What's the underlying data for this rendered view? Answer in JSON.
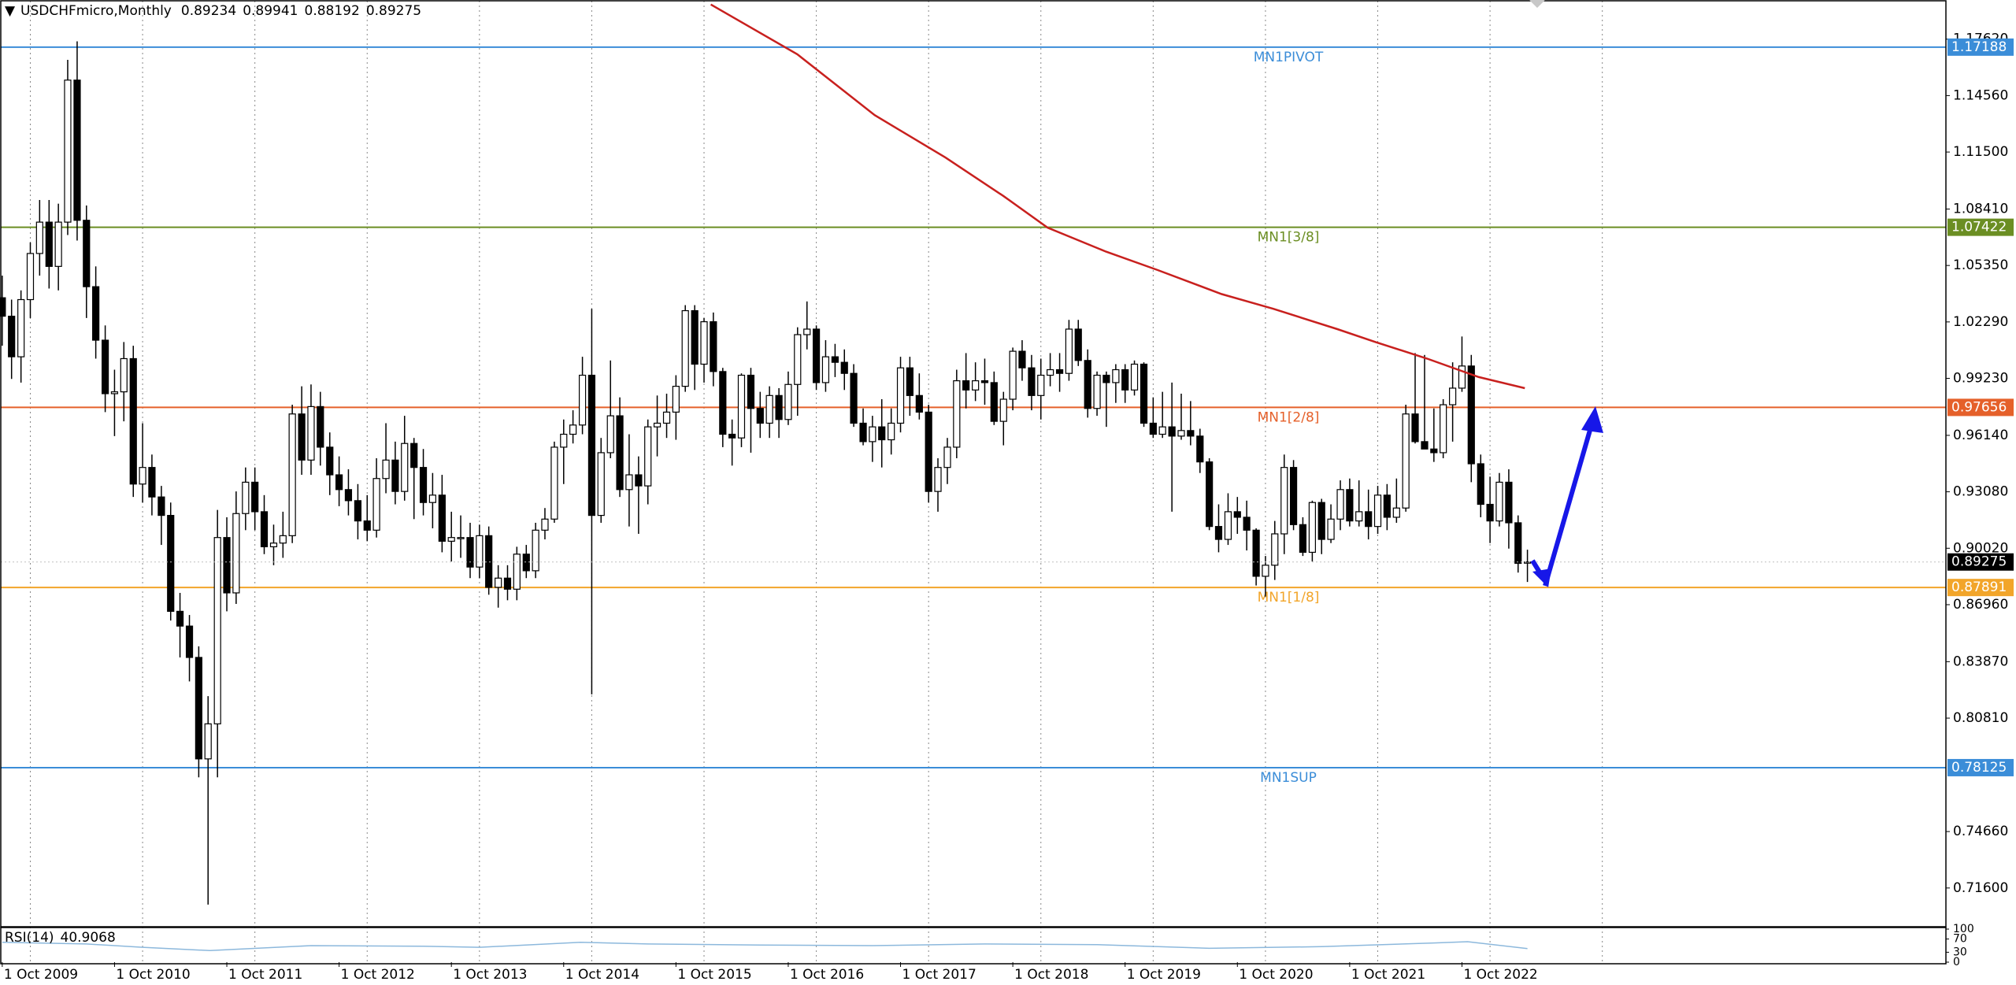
{
  "chart_data": {
    "type": "candlestick",
    "title": "USDCHFmicro,Monthly",
    "xlim": [
      2009.73,
      2027.06
    ],
    "ylim": [
      0.695,
      1.197
    ],
    "grid": true,
    "xgrid": [
      2010,
      2011,
      2012,
      2013,
      2014,
      2015,
      2016,
      2017,
      2018,
      2019,
      2020,
      2021,
      2022,
      2023,
      2024
    ],
    "xticks": [
      {
        "value": 2009.75,
        "label": "1 Oct 2009"
      },
      {
        "value": 2010.75,
        "label": "1 Oct 2010"
      },
      {
        "value": 2011.75,
        "label": "1 Oct 2011"
      },
      {
        "value": 2012.75,
        "label": "1 Oct 2012"
      },
      {
        "value": 2013.75,
        "label": "1 Oct 2013"
      },
      {
        "value": 2014.75,
        "label": "1 Oct 2014"
      },
      {
        "value": 2015.75,
        "label": "1 Oct 2015"
      },
      {
        "value": 2016.75,
        "label": "1 Oct 2016"
      },
      {
        "value": 2017.75,
        "label": "1 Oct 2017"
      },
      {
        "value": 2018.75,
        "label": "1 Oct 2018"
      },
      {
        "value": 2019.75,
        "label": "1 Oct 2019"
      },
      {
        "value": 2020.75,
        "label": "1 Oct 2020"
      },
      {
        "value": 2021.75,
        "label": "1 Oct 2021"
      },
      {
        "value": 2022.75,
        "label": "1 Oct 2022"
      }
    ],
    "yticks": [
      {
        "value": 1.1762,
        "label": "1.17620"
      },
      {
        "value": 1.1456,
        "label": "1.14560"
      },
      {
        "value": 1.115,
        "label": "1.11500"
      },
      {
        "value": 1.0841,
        "label": "1.08410"
      },
      {
        "value": 1.0535,
        "label": "1.05350"
      },
      {
        "value": 1.0229,
        "label": "1.02290"
      },
      {
        "value": 0.9923,
        "label": "0.99230"
      },
      {
        "value": 0.9614,
        "label": "0.96140"
      },
      {
        "value": 0.9308,
        "label": "0.93080"
      },
      {
        "value": 0.9002,
        "label": "0.90020"
      },
      {
        "value": 0.8696,
        "label": "0.86960"
      },
      {
        "value": 0.8387,
        "label": "0.83870"
      },
      {
        "value": 0.8081,
        "label": "0.80810"
      },
      {
        "value": 0.7466,
        "label": "0.74660"
      },
      {
        "value": 0.716,
        "label": "0.71600"
      }
    ],
    "series": [
      {
        "up_color": "#ffffff",
        "down_color": "#000000",
        "wick_color": "#000000",
        "x": [
          2009.75,
          2009.833,
          2009.917,
          2010,
          2010.083,
          2010.167,
          2010.25,
          2010.333,
          2010.417,
          2010.5,
          2010.583,
          2010.667,
          2010.75,
          2010.833,
          2010.917,
          2011,
          2011.083,
          2011.167,
          2011.25,
          2011.333,
          2011.417,
          2011.5,
          2011.583,
          2011.667,
          2011.75,
          2011.833,
          2011.917,
          2012,
          2012.083,
          2012.167,
          2012.25,
          2012.333,
          2012.417,
          2012.5,
          2012.583,
          2012.667,
          2012.75,
          2012.833,
          2012.917,
          2013,
          2013.083,
          2013.167,
          2013.25,
          2013.333,
          2013.417,
          2013.5,
          2013.583,
          2013.667,
          2013.75,
          2013.833,
          2013.917,
          2014,
          2014.083,
          2014.167,
          2014.25,
          2014.333,
          2014.417,
          2014.5,
          2014.583,
          2014.667,
          2014.75,
          2014.833,
          2014.917,
          2015,
          2015.083,
          2015.167,
          2015.25,
          2015.333,
          2015.417,
          2015.5,
          2015.583,
          2015.667,
          2015.75,
          2015.833,
          2015.917,
          2016,
          2016.083,
          2016.167,
          2016.25,
          2016.333,
          2016.417,
          2016.5,
          2016.583,
          2016.667,
          2016.75,
          2016.833,
          2016.917,
          2017,
          2017.083,
          2017.167,
          2017.25,
          2017.333,
          2017.417,
          2017.5,
          2017.583,
          2017.667,
          2017.75,
          2017.833,
          2017.917,
          2018,
          2018.083,
          2018.167,
          2018.25,
          2018.333,
          2018.417,
          2018.5,
          2018.583,
          2018.667,
          2018.75,
          2018.833,
          2018.917,
          2019,
          2019.083,
          2019.167,
          2019.25,
          2019.333,
          2019.417,
          2019.5,
          2019.583,
          2019.667,
          2019.75,
          2019.833,
          2019.917,
          2020,
          2020.083,
          2020.167,
          2020.25,
          2020.333,
          2020.417,
          2020.5,
          2020.583,
          2020.667,
          2020.75,
          2020.833,
          2020.917,
          2021,
          2021.083,
          2021.167,
          2021.25,
          2021.333,
          2021.417,
          2021.5,
          2021.583,
          2021.667,
          2021.75,
          2021.833,
          2021.917,
          2022,
          2022.083,
          2022.167,
          2022.25,
          2022.333,
          2022.417,
          2022.5,
          2022.583,
          2022.667,
          2022.75,
          2022.833,
          2022.917,
          2023,
          2023.083,
          2023.167,
          2023.25,
          2023.333
        ],
        "open": [
          1.036,
          1.026,
          1.004,
          1.035,
          1.06,
          1.077,
          1.053,
          1.077,
          1.154,
          1.078,
          1.042,
          1.013,
          0.984,
          0.985,
          1.003,
          0.935,
          0.944,
          0.928,
          0.918,
          0.866,
          0.858,
          0.841,
          0.786,
          0.805,
          0.906,
          0.876,
          0.919,
          0.936,
          0.92,
          0.901,
          0.903,
          0.907,
          0.973,
          0.948,
          0.977,
          0.955,
          0.94,
          0.932,
          0.926,
          0.915,
          0.91,
          0.938,
          0.948,
          0.931,
          0.957,
          0.944,
          0.925,
          0.929,
          0.904,
          0.906,
          0.906,
          0.89,
          0.907,
          0.879,
          0.884,
          0.878,
          0.897,
          0.888,
          0.91,
          0.916,
          0.955,
          0.962,
          0.967,
          0.994,
          0.918,
          0.952,
          0.972,
          0.932,
          0.94,
          0.934,
          0.966,
          0.968,
          0.974,
          0.988,
          1.029,
          1,
          1.023,
          0.996,
          0.962,
          0.96,
          0.994,
          0.976,
          0.968,
          0.983,
          0.97,
          0.989,
          1.016,
          1.019,
          0.99,
          1.004,
          1.001,
          0.995,
          0.968,
          0.958,
          0.966,
          0.959,
          0.968,
          0.998,
          0.983,
          0.974,
          0.931,
          0.944,
          0.955,
          0.991,
          0.986,
          0.991,
          0.99,
          0.969,
          0.981,
          1.007,
          0.998,
          0.983,
          0.994,
          0.997,
          0.995,
          1.019,
          1.002,
          0.976,
          0.994,
          0.99,
          0.997,
          0.986,
          1,
          0.968,
          0.962,
          0.966,
          0.961,
          0.964,
          0.961,
          0.947,
          0.912,
          0.905,
          0.92,
          0.917,
          0.91,
          0.885,
          0.891,
          0.908,
          0.944,
          0.913,
          0.898,
          0.925,
          0.905,
          0.916,
          0.932,
          0.915,
          0.92,
          0.912,
          0.929,
          0.917,
          0.922,
          0.973,
          0.958,
          0.954,
          0.952,
          0.978,
          0.987,
          0.999,
          0.946,
          0.924,
          0.915,
          0.936,
          0.914,
          0.89234
        ],
        "high": [
          1.048,
          1.035,
          1.04,
          1.066,
          1.089,
          1.089,
          1.087,
          1.165,
          1.175,
          1.086,
          1.053,
          1.021,
          0.997,
          1.012,
          1.01,
          0.968,
          0.951,
          0.934,
          0.925,
          0.876,
          0.864,
          0.847,
          0.82,
          0.921,
          0.917,
          0.931,
          0.944,
          0.944,
          0.929,
          0.913,
          0.92,
          0.978,
          0.988,
          0.989,
          0.985,
          0.963,
          0.95,
          0.943,
          0.935,
          0.929,
          0.949,
          0.968,
          0.958,
          0.972,
          0.96,
          0.954,
          0.941,
          0.94,
          0.92,
          0.918,
          0.914,
          0.913,
          0.912,
          0.891,
          0.891,
          0.901,
          0.902,
          0.914,
          0.922,
          0.958,
          0.97,
          0.975,
          1.004,
          1.03,
          0.96,
          1.002,
          0.982,
          0.962,
          0.95,
          0.97,
          0.983,
          0.984,
          0.994,
          1.032,
          1.032,
          1.025,
          1.028,
          0.998,
          0.97,
          0.995,
          0.998,
          0.985,
          0.988,
          0.987,
          0.996,
          1.02,
          1.034,
          1.021,
          1.013,
          1.011,
          1.008,
          1,
          0.976,
          0.972,
          0.981,
          0.976,
          1.004,
          1.004,
          0.995,
          0.978,
          0.949,
          0.96,
          0.997,
          1.006,
          1.001,
          1.003,
          0.996,
          0.985,
          1.009,
          1.013,
          1.005,
          1.003,
          1.006,
          1.006,
          1.024,
          1.024,
          1.008,
          0.996,
          0.996,
          1,
          1,
          1.002,
          1.001,
          0.982,
          0.985,
          0.99,
          0.984,
          0.98,
          0.965,
          0.949,
          0.924,
          0.93,
          0.928,
          0.926,
          0.911,
          0.896,
          0.915,
          0.951,
          0.948,
          0.917,
          0.926,
          0.927,
          0.924,
          0.937,
          0.938,
          0.937,
          0.932,
          0.934,
          0.935,
          0.938,
          0.978,
          1.006,
          1.005,
          0.976,
          0.981,
          1.001,
          1.015,
          1.005,
          0.951,
          0.939,
          0.941,
          0.943,
          0.918,
          0.89941
        ],
        "low": [
          1.01,
          0.992,
          0.99,
          1.025,
          1.048,
          1.041,
          1.04,
          1.07,
          1.067,
          1.025,
          1.003,
          0.974,
          0.961,
          0.969,
          0.928,
          0.925,
          0.918,
          0.902,
          0.861,
          0.841,
          0.828,
          0.776,
          0.707,
          0.776,
          0.866,
          0.87,
          0.91,
          0.91,
          0.897,
          0.891,
          0.895,
          0.903,
          0.94,
          0.94,
          0.945,
          0.929,
          0.923,
          0.918,
          0.905,
          0.904,
          0.906,
          0.93,
          0.924,
          0.926,
          0.916,
          0.918,
          0.911,
          0.898,
          0.893,
          0.895,
          0.884,
          0.884,
          0.875,
          0.868,
          0.872,
          0.872,
          0.884,
          0.884,
          0.905,
          0.914,
          0.935,
          0.957,
          0.962,
          0.821,
          0.914,
          0.949,
          0.928,
          0.912,
          0.908,
          0.924,
          0.95,
          0.96,
          0.959,
          0.985,
          0.986,
          0.99,
          0.988,
          0.955,
          0.945,
          0.955,
          0.952,
          0.96,
          0.96,
          0.96,
          0.967,
          0.972,
          1.008,
          0.986,
          0.985,
          0.993,
          0.986,
          0.966,
          0.956,
          0.947,
          0.944,
          0.951,
          0.963,
          0.972,
          0.97,
          0.925,
          0.92,
          0.935,
          0.949,
          0.976,
          0.98,
          0.978,
          0.967,
          0.956,
          0.975,
          0.991,
          0.975,
          0.97,
          0.988,
          0.985,
          0.991,
          0.999,
          0.971,
          0.972,
          0.966,
          0.979,
          0.979,
          0.983,
          0.966,
          0.96,
          0.96,
          0.92,
          0.959,
          0.956,
          0.941,
          0.91,
          0.898,
          0.902,
          0.908,
          0.899,
          0.88,
          0.874,
          0.883,
          0.897,
          0.91,
          0.896,
          0.893,
          0.897,
          0.903,
          0.91,
          0.912,
          0.912,
          0.905,
          0.908,
          0.91,
          0.914,
          0.92,
          0.957,
          0.954,
          0.947,
          0.949,
          0.958,
          0.985,
          0.936,
          0.917,
          0.903,
          0.912,
          0.9,
          0.887,
          0.88192
        ],
        "close": [
          1.026,
          1.004,
          1.035,
          1.06,
          1.077,
          1.053,
          1.077,
          1.154,
          1.078,
          1.042,
          1.013,
          0.984,
          0.985,
          1.003,
          0.935,
          0.944,
          0.928,
          0.918,
          0.866,
          0.858,
          0.841,
          0.786,
          0.805,
          0.906,
          0.876,
          0.919,
          0.936,
          0.92,
          0.901,
          0.903,
          0.907,
          0.973,
          0.948,
          0.977,
          0.955,
          0.94,
          0.932,
          0.926,
          0.915,
          0.91,
          0.938,
          0.948,
          0.931,
          0.957,
          0.944,
          0.925,
          0.929,
          0.904,
          0.906,
          0.906,
          0.89,
          0.907,
          0.879,
          0.884,
          0.878,
          0.897,
          0.888,
          0.91,
          0.916,
          0.955,
          0.962,
          0.967,
          0.994,
          0.918,
          0.952,
          0.972,
          0.932,
          0.94,
          0.934,
          0.966,
          0.968,
          0.974,
          0.988,
          1.029,
          1,
          1.023,
          0.996,
          0.962,
          0.96,
          0.994,
          0.976,
          0.968,
          0.983,
          0.97,
          0.989,
          1.016,
          1.019,
          0.99,
          1.004,
          1.001,
          0.995,
          0.968,
          0.958,
          0.966,
          0.959,
          0.968,
          0.998,
          0.983,
          0.974,
          0.931,
          0.944,
          0.955,
          0.991,
          0.986,
          0.991,
          0.99,
          0.969,
          0.981,
          1.007,
          0.998,
          0.983,
          0.994,
          0.997,
          0.995,
          1.019,
          1.002,
          0.976,
          0.994,
          0.99,
          0.997,
          0.986,
          1,
          0.968,
          0.962,
          0.966,
          0.961,
          0.964,
          0.961,
          0.947,
          0.912,
          0.905,
          0.92,
          0.917,
          0.91,
          0.885,
          0.891,
          0.908,
          0.944,
          0.913,
          0.898,
          0.925,
          0.905,
          0.916,
          0.932,
          0.915,
          0.92,
          0.912,
          0.929,
          0.917,
          0.922,
          0.973,
          0.958,
          0.954,
          0.952,
          0.978,
          0.987,
          0.999,
          0.946,
          0.924,
          0.915,
          0.936,
          0.914,
          0.892,
          0.89275
        ]
      }
    ],
    "ma": {
      "color": "#c8201e",
      "x": [
        2016.06,
        2016.83,
        2017.52,
        2018.15,
        2018.67,
        2019.06,
        2019.58,
        2020.04,
        2020.61,
        2021.07,
        2021.64,
        2021.98,
        2022.44,
        2022.9,
        2023.31
      ],
      "values": [
        1.195,
        1.168,
        1.135,
        1.112,
        1.091,
        1.074,
        1.061,
        1.051,
        1.038,
        1.03,
        1.019,
        1.012,
        1.003,
        0.993,
        0.987
      ]
    },
    "levels": [
      {
        "name": "MN1PIVOT",
        "value": 1.17188,
        "color": "#3b8dd8"
      },
      {
        "name": "MN1[3/8]",
        "value": 1.07422,
        "color": "#6b8e23"
      },
      {
        "name": "MN1[2/8]",
        "value": 0.97656,
        "color": "#e5602a"
      },
      {
        "name": "MN1[1/8]",
        "value": 0.87891,
        "color": "#f2a52a"
      },
      {
        "name": "MN1SUP",
        "value": 0.78125,
        "color": "#3b8dd8"
      }
    ],
    "rsi": {
      "label": "RSI(14)",
      "color": "#8cb8dc",
      "ylim": [
        0,
        100
      ],
      "yticks": [
        100,
        70,
        30,
        0
      ],
      "x": [
        2009.75,
        2010.5,
        2011.0,
        2011.6,
        2012.5,
        2013.5,
        2014.0,
        2014.9,
        2015.5,
        2016.5,
        2017.5,
        2018.5,
        2019.5,
        2020.5,
        2021.5,
        2022.5,
        2022.8,
        2023.333
      ],
      "values": [
        60,
        55,
        45,
        35,
        50,
        48,
        45,
        60,
        55,
        52,
        50,
        55,
        53,
        42,
        47,
        58,
        62,
        40.9068
      ]
    }
  }
}
